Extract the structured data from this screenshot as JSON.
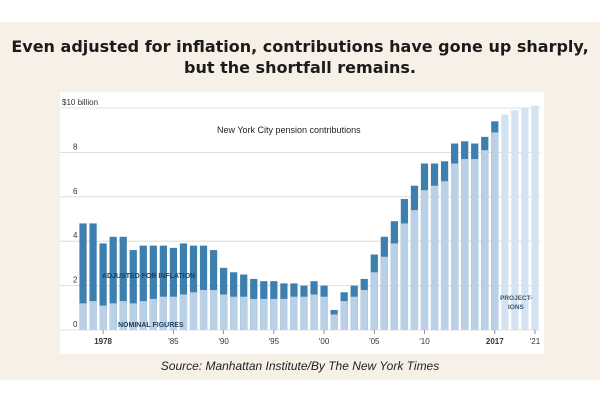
{
  "headline": "Even adjusted for inflation, contributions have gone up sharply, but the shortfall remains.",
  "source": "Source: Manhattan Institute/By The New York Times",
  "colors": {
    "adjusted": "#3d7fae",
    "nominal": "#b9d0e6",
    "projection": "#d4e3f1",
    "frame": "#f7f0e6"
  },
  "chart_data": {
    "type": "bar",
    "title": "New York City pension contributions",
    "ylabel": "$10 billion",
    "ylim": [
      0,
      10
    ],
    "yticks": [
      "$10 billion",
      "8",
      "6",
      "4",
      "2",
      "0"
    ],
    "x_tick_labels": [
      "1978",
      "'85",
      "'90",
      "'95",
      "'00",
      "'05",
      "'10",
      "2017",
      "'21"
    ],
    "annotations": {
      "adjusted": "ADJUSTED FOR INFLATION",
      "nominal": "NOMINAL FIGURES",
      "projections": "PROJECT-\nIONS"
    },
    "categories": [
      1976,
      1977,
      1978,
      1979,
      1980,
      1981,
      1982,
      1983,
      1984,
      1985,
      1986,
      1987,
      1988,
      1989,
      1990,
      1991,
      1992,
      1993,
      1994,
      1995,
      1996,
      1997,
      1998,
      1999,
      2000,
      2001,
      2002,
      2003,
      2004,
      2005,
      2006,
      2007,
      2008,
      2009,
      2010,
      2011,
      2012,
      2013,
      2014,
      2015,
      2016,
      2017,
      2018,
      2019,
      2020,
      2021
    ],
    "series": [
      {
        "name": "ADJUSTED FOR INFLATION",
        "values": [
          4.8,
          4.8,
          3.9,
          4.2,
          4.2,
          3.6,
          3.8,
          3.8,
          3.8,
          3.7,
          3.9,
          3.8,
          3.8,
          3.6,
          2.8,
          2.6,
          2.5,
          2.3,
          2.2,
          2.2,
          2.1,
          2.1,
          2.0,
          2.2,
          2.0,
          0.9,
          1.7,
          2.0,
          2.3,
          3.4,
          4.2,
          4.9,
          5.9,
          6.5,
          7.5,
          7.5,
          7.6,
          8.4,
          8.5,
          8.4,
          8.7,
          9.4,
          9.7,
          9.9,
          10.0,
          10.1
        ]
      },
      {
        "name": "NOMINAL FIGURES",
        "values": [
          1.2,
          1.3,
          1.1,
          1.2,
          1.3,
          1.2,
          1.3,
          1.4,
          1.5,
          1.5,
          1.6,
          1.7,
          1.8,
          1.8,
          1.6,
          1.5,
          1.5,
          1.4,
          1.4,
          1.4,
          1.4,
          1.5,
          1.5,
          1.6,
          1.5,
          0.7,
          1.3,
          1.5,
          1.8,
          2.6,
          3.3,
          3.9,
          4.8,
          5.4,
          6.3,
          6.5,
          6.7,
          7.5,
          7.7,
          7.7,
          8.1,
          8.9,
          9.4,
          9.7,
          9.9,
          10.1
        ]
      }
    ],
    "projection_start": 2018,
    "grid": true
  }
}
